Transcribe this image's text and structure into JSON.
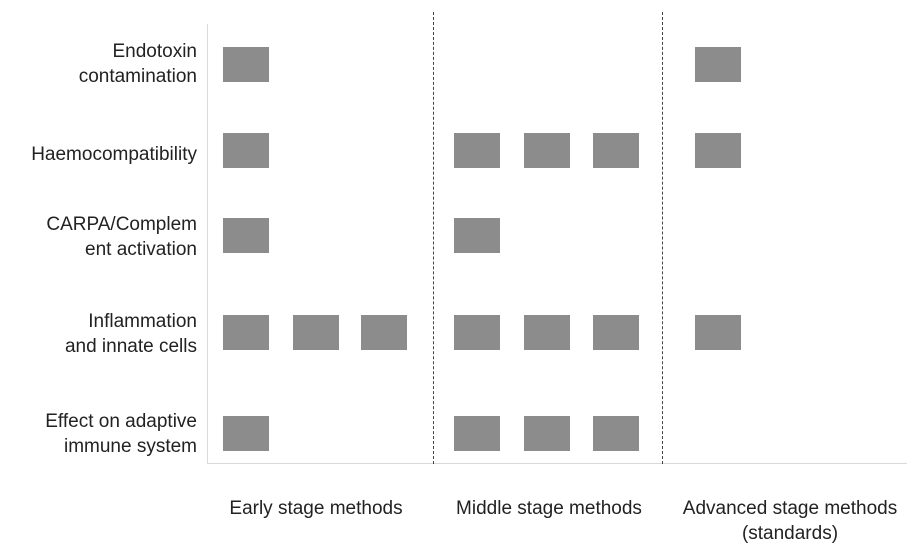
{
  "diagram": {
    "box_color": "#8c8c8c",
    "rows": [
      {
        "label": "Endotoxin\ncontamination",
        "early": 1,
        "middle": 0,
        "advanced": 1
      },
      {
        "label": "Haemocompatibility",
        "early": 1,
        "middle": 3,
        "advanced": 1
      },
      {
        "label": "CARPA/Complem\nent activation",
        "early": 1,
        "middle": 1,
        "advanced": 0
      },
      {
        "label": "Inflammation\nand innate cells",
        "early": 3,
        "middle": 3,
        "advanced": 1
      },
      {
        "label": "Effect on adaptive\nimmune system",
        "early": 1,
        "middle": 3,
        "advanced": 0
      }
    ],
    "columns": [
      {
        "key": "early",
        "label": "Early stage methods"
      },
      {
        "key": "middle",
        "label": "Middle stage methods"
      },
      {
        "key": "advanced",
        "label": "Advanced stage methods\n(standards)"
      }
    ]
  }
}
